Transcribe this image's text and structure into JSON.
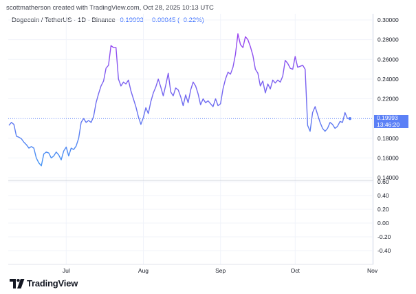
{
  "header": {
    "attribution": "scottmatherson created with TradingView.com, Oct 28, 2025 10:13 UTC",
    "symbol": "Dogecoin / TetherUS · 1D · Binance",
    "last_price": "0.19993",
    "change": "−0.00045 (−0.22%)"
  },
  "price_label": {
    "price": "0.19993",
    "countdown": "13:46:20"
  },
  "brand": {
    "name": "TradingView"
  },
  "colors": {
    "line_low": "#3d9df5",
    "line_mid": "#6b6ef0",
    "line_high": "#a53bf0",
    "price_line": "#5b80f6",
    "grid": "#f0f3fa"
  },
  "chart_data": [
    {
      "type": "line",
      "title": "Dogecoin / TetherUS · 1D · Binance",
      "xlabel": "",
      "ylabel": "",
      "x_tick_labels": [
        "Jul",
        "Aug",
        "Sep",
        "Oct",
        "Nov"
      ],
      "y_ticks": [
        "0.30000",
        "0.28000",
        "0.26000",
        "0.24000",
        "0.22000",
        "0.18000",
        "0.16000",
        "0.14000"
      ],
      "ylim": [
        0.14,
        0.3
      ],
      "grid": true,
      "x_start": "2025-06-08",
      "values": [
        0.193,
        0.196,
        0.194,
        0.182,
        0.181,
        0.1795,
        0.176,
        0.1735,
        0.17,
        0.1715,
        0.17,
        0.16,
        0.155,
        0.152,
        0.164,
        0.166,
        0.165,
        0.16,
        0.162,
        0.166,
        0.163,
        0.158,
        0.167,
        0.171,
        0.162,
        0.17,
        0.1685,
        0.172,
        0.18,
        0.196,
        0.2,
        0.196,
        0.198,
        0.196,
        0.202,
        0.216,
        0.225,
        0.233,
        0.238,
        0.251,
        0.254,
        0.274,
        0.272,
        0.272,
        0.24,
        0.233,
        0.237,
        0.235,
        0.239,
        0.228,
        0.22,
        0.212,
        0.202,
        0.194,
        0.201,
        0.211,
        0.205,
        0.217,
        0.226,
        0.232,
        0.24,
        0.232,
        0.223,
        0.234,
        0.246,
        0.227,
        0.223,
        0.231,
        0.229,
        0.222,
        0.213,
        0.224,
        0.216,
        0.229,
        0.237,
        0.233,
        0.225,
        0.214,
        0.22,
        0.216,
        0.218,
        0.215,
        0.212,
        0.22,
        0.213,
        0.215,
        0.23,
        0.24,
        0.247,
        0.245,
        0.252,
        0.265,
        0.286,
        0.275,
        0.272,
        0.283,
        0.28,
        0.273,
        0.264,
        0.25,
        0.246,
        0.233,
        0.238,
        0.226,
        0.235,
        0.23,
        0.239,
        0.236,
        0.239,
        0.237,
        0.243,
        0.259,
        0.256,
        0.251,
        0.25,
        0.263,
        0.252,
        0.253,
        0.254,
        0.25,
        0.193,
        0.187,
        0.206,
        0.212,
        0.204,
        0.196,
        0.19,
        0.187,
        0.19,
        0.196,
        0.194,
        0.19,
        0.192,
        0.197,
        0.196,
        0.206,
        0.2,
        0.1999
      ],
      "last_value": 0.19993
    },
    {
      "type": "line",
      "title": "",
      "y_ticks": [
        "0.60",
        "0.40",
        "0.20",
        "0.00",
        "-0.20",
        "-0.40"
      ],
      "ylim": [
        -0.5,
        0.6
      ],
      "grid": true,
      "series": []
    }
  ]
}
